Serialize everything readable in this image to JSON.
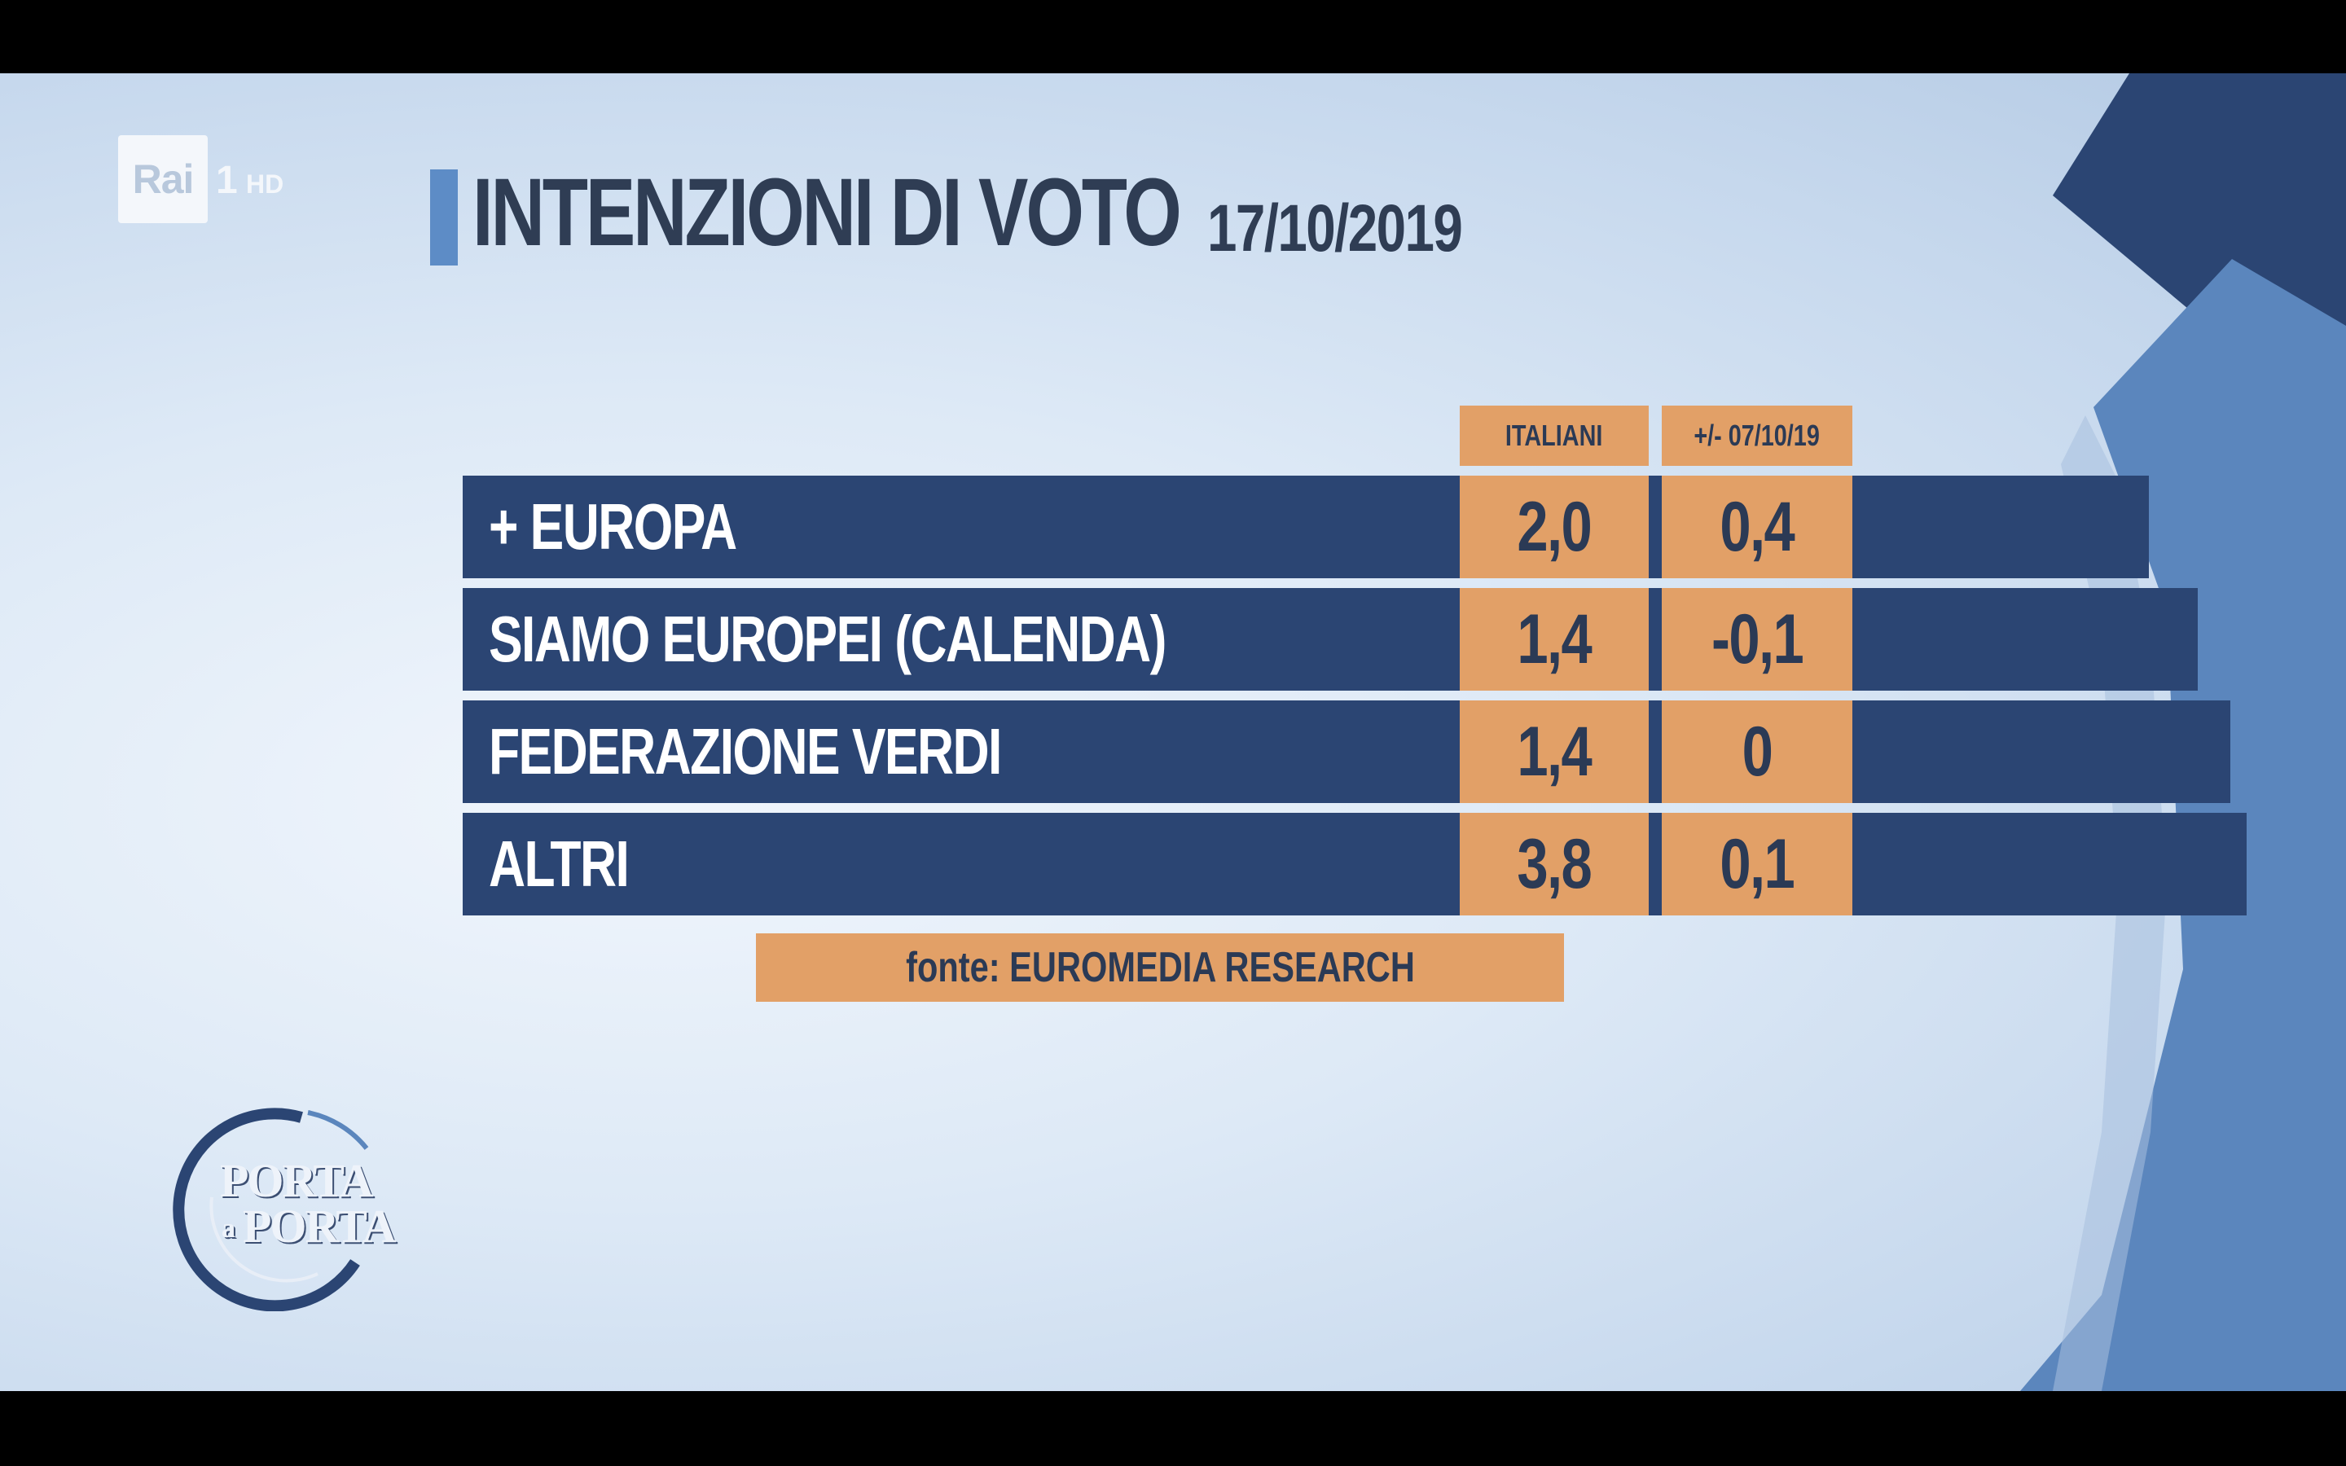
{
  "channel": {
    "rai_text": "Rai",
    "channel_number": "1",
    "hd_text": "HD"
  },
  "title": {
    "main": "INTENZIONI DI VOTO",
    "date": "17/10/2019"
  },
  "table": {
    "headers": [
      "ITALIANI",
      "+/- 07/10/19"
    ],
    "rows": [
      {
        "label": "+ EUROPA",
        "italiani": "2,0",
        "delta": "0,4"
      },
      {
        "label": "SIAMO EUROPEI (CALENDA)",
        "italiani": "1,4",
        "delta": "-0,1"
      },
      {
        "label": "FEDERAZIONE VERDI",
        "italiani": "1,4",
        "delta": "0"
      },
      {
        "label": "ALTRI",
        "italiani": "3,8",
        "delta": "0,1"
      }
    ]
  },
  "source": "fonte: EUROMEDIA RESEARCH",
  "show_logo": {
    "line1": "PORTA",
    "connector": "a",
    "line2": "PORTA"
  },
  "colors": {
    "navy": "#2b4573",
    "orange": "#e2a067",
    "title_text": "#2f3d54",
    "accent_blue": "#5d8cc6",
    "dark_navy": "#243f6c"
  }
}
